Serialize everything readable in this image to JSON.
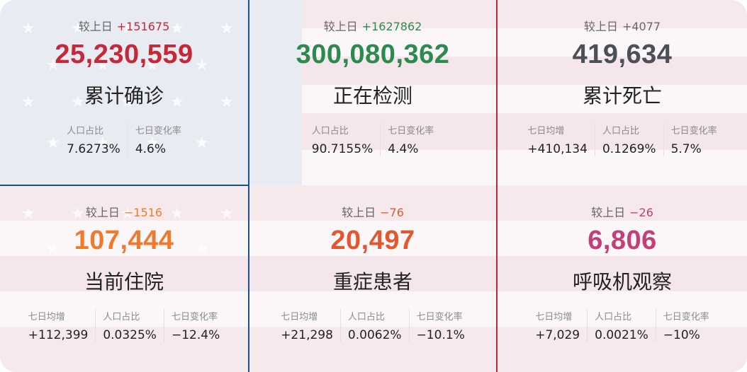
{
  "delta_label": "较上日",
  "cards": [
    {
      "delta": "+151675",
      "delta_color": "#c6283a",
      "value": "25,230,559",
      "value_color": "#c6283a",
      "title": "累计确诊",
      "stats": [
        {
          "label": "人口占比",
          "value": "7.6273%"
        },
        {
          "label": "七日变化率",
          "value": "4.6%"
        }
      ]
    },
    {
      "delta": "+1627862",
      "delta_color": "#2b8a4e",
      "value": "300,080,362",
      "value_color": "#2b8a4e",
      "title": "正在检测",
      "stats": [
        {
          "label": "人口占比",
          "value": "90.7155%"
        },
        {
          "label": "七日变化率",
          "value": "4.4%"
        }
      ]
    },
    {
      "delta": "+4077",
      "delta_color": "#666666",
      "value": "419,634",
      "value_color": "#4a4f58",
      "title": "累计死亡",
      "stats": [
        {
          "label": "七日均增",
          "value": "+410,134"
        },
        {
          "label": "人口占比",
          "value": "0.1269%"
        },
        {
          "label": "七日变化率",
          "value": "5.7%"
        }
      ]
    },
    {
      "delta": "−1516",
      "delta_color": "#f07a2c",
      "value": "107,444",
      "value_color": "#f07a2c",
      "title": "当前住院",
      "stats": [
        {
          "label": "七日均增",
          "value": "+112,399"
        },
        {
          "label": "人口占比",
          "value": "0.0325%"
        },
        {
          "label": "七日变化率",
          "value": "−12.4%"
        }
      ]
    },
    {
      "delta": "−76",
      "delta_color": "#e4572e",
      "value": "20,497",
      "value_color": "#e4572e",
      "title": "重症患者",
      "stats": [
        {
          "label": "七日均增",
          "value": "+21,298"
        },
        {
          "label": "人口占比",
          "value": "0.0062%"
        },
        {
          "label": "七日变化率",
          "value": "−10.1%"
        }
      ]
    },
    {
      "delta": "−26",
      "delta_color": "#c43f7a",
      "value": "6,806",
      "value_color": "#c43f7a",
      "title": "呼吸机观察",
      "stats": [
        {
          "label": "七日均增",
          "value": "+7,029"
        },
        {
          "label": "人口占比",
          "value": "0.0021%"
        },
        {
          "label": "七日变化率",
          "value": "−10%"
        }
      ]
    }
  ]
}
